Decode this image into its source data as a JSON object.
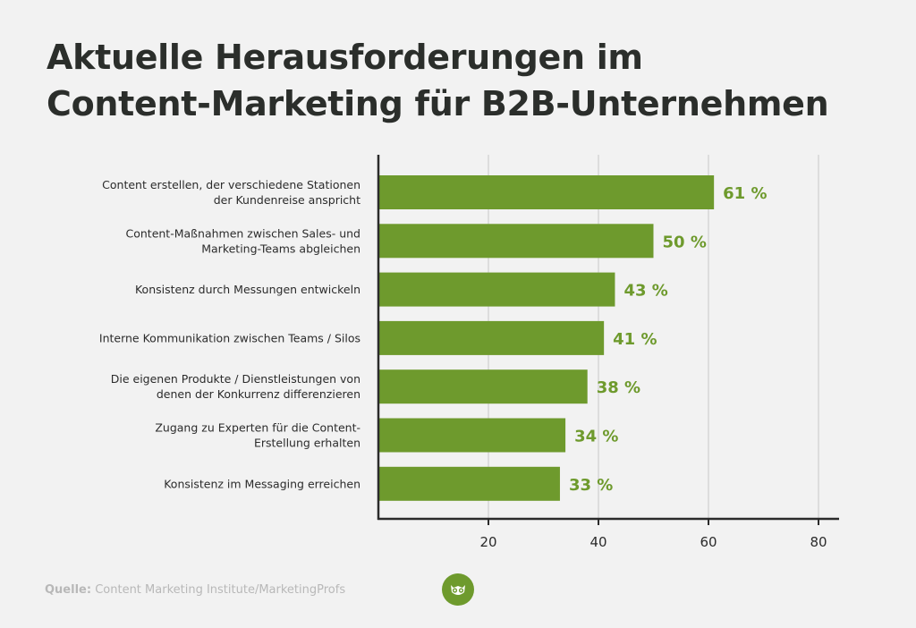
{
  "title_line1": "Aktuelle Herausforderungen im",
  "title_line2": "Content-Marketing für B2B-Unternehmen",
  "footer": {
    "label": "Quelle:",
    "text": "Content Marketing Institute/MarketingProfs"
  },
  "colors": {
    "bar": "#6e9a2d",
    "value_label": "#6e9a2d",
    "axis": "#2b2b2b",
    "grid": "#c8c8c8"
  },
  "logo": {
    "icon": "owl-icon"
  },
  "chart_data": {
    "type": "bar",
    "orientation": "horizontal",
    "categories": [
      [
        "Content erstellen, der verschiedene Stationen",
        "der Kundenreise anspricht"
      ],
      [
        "Content-Maßnahmen zwischen Sales- und",
        "Marketing-Teams abgleichen"
      ],
      [
        "Konsistenz durch Messungen entwickeln"
      ],
      [
        "Interne Kommunikation zwischen Teams / Silos"
      ],
      [
        "Die eigenen Produkte / Dienstleistungen von",
        "denen der Konkurrenz differenzieren"
      ],
      [
        "Zugang zu Experten für die Content-",
        "Erstellung erhalten"
      ],
      [
        "Konsistenz im Messaging erreichen"
      ]
    ],
    "values": [
      61,
      50,
      43,
      41,
      38,
      34,
      33
    ],
    "value_labels": [
      "61 %",
      "50 %",
      "43 %",
      "41 %",
      "38 %",
      "34 %",
      "33 %"
    ],
    "xlim": [
      0,
      84
    ],
    "xticks": [
      20,
      40,
      60,
      80
    ],
    "grid": true,
    "legend": "none"
  }
}
